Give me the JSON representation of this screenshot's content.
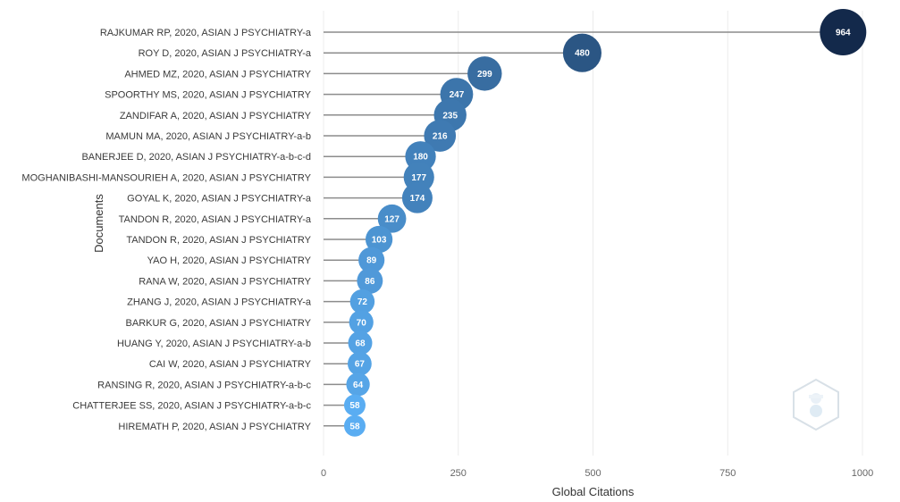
{
  "chart_data": {
    "type": "lollipop",
    "xlabel": "Global Citations",
    "ylabel": "Documents",
    "xlim": [
      0,
      1000
    ],
    "xticks": [
      0,
      250,
      500,
      750,
      1000
    ],
    "grid": true,
    "documents": [
      {
        "label": "RAJKUMAR RP, 2020, ASIAN J PSYCHIATRY-a",
        "value": 964
      },
      {
        "label": "ROY D, 2020, ASIAN J PSYCHIATRY-a",
        "value": 480
      },
      {
        "label": "AHMED MZ, 2020, ASIAN J PSYCHIATRY",
        "value": 299
      },
      {
        "label": "SPOORTHY MS, 2020, ASIAN J PSYCHIATRY",
        "value": 247
      },
      {
        "label": "ZANDIFAR A, 2020, ASIAN J PSYCHIATRY",
        "value": 235
      },
      {
        "label": "MAMUN MA, 2020, ASIAN J PSYCHIATRY-a-b",
        "value": 216
      },
      {
        "label": "BANERJEE D, 2020, ASIAN J PSYCHIATRY-a-b-c-d",
        "value": 180
      },
      {
        "label": "MOGHANIBASHI-MANSOURIEH A, 2020, ASIAN J PSYCHIATRY",
        "value": 177
      },
      {
        "label": "GOYAL K, 2020, ASIAN J PSYCHIATRY-a",
        "value": 174
      },
      {
        "label": "TANDON R, 2020, ASIAN J PSYCHIATRY-a",
        "value": 127
      },
      {
        "label": "TANDON R, 2020, ASIAN J PSYCHIATRY",
        "value": 103
      },
      {
        "label": "YAO H, 2020, ASIAN J PSYCHIATRY",
        "value": 89
      },
      {
        "label": "RANA W, 2020, ASIAN J PSYCHIATRY",
        "value": 86
      },
      {
        "label": "ZHANG J, 2020, ASIAN J PSYCHIATRY-a",
        "value": 72
      },
      {
        "label": "BARKUR G, 2020, ASIAN J PSYCHIATRY",
        "value": 70
      },
      {
        "label": "HUANG Y, 2020, ASIAN J PSYCHIATRY-a-b",
        "value": 68
      },
      {
        "label": "CAI W, 2020, ASIAN J PSYCHIATRY",
        "value": 67
      },
      {
        "label": "RANSING R, 2020, ASIAN J PSYCHIATRY-a-b-c",
        "value": 64
      },
      {
        "label": "CHATTERJEE SS, 2020, ASIAN J PSYCHIATRY-a-b-c",
        "value": 58
      },
      {
        "label": "HIREMATH P, 2020, ASIAN J PSYCHIATRY",
        "value": 58
      }
    ],
    "colors": {
      "bubble_low": "#5aadf2",
      "bubble_high": "#13294b",
      "stem": "#8c8c8c",
      "grid": "#ececec"
    },
    "watermark_icon": "bibliometrix-logo-icon"
  }
}
